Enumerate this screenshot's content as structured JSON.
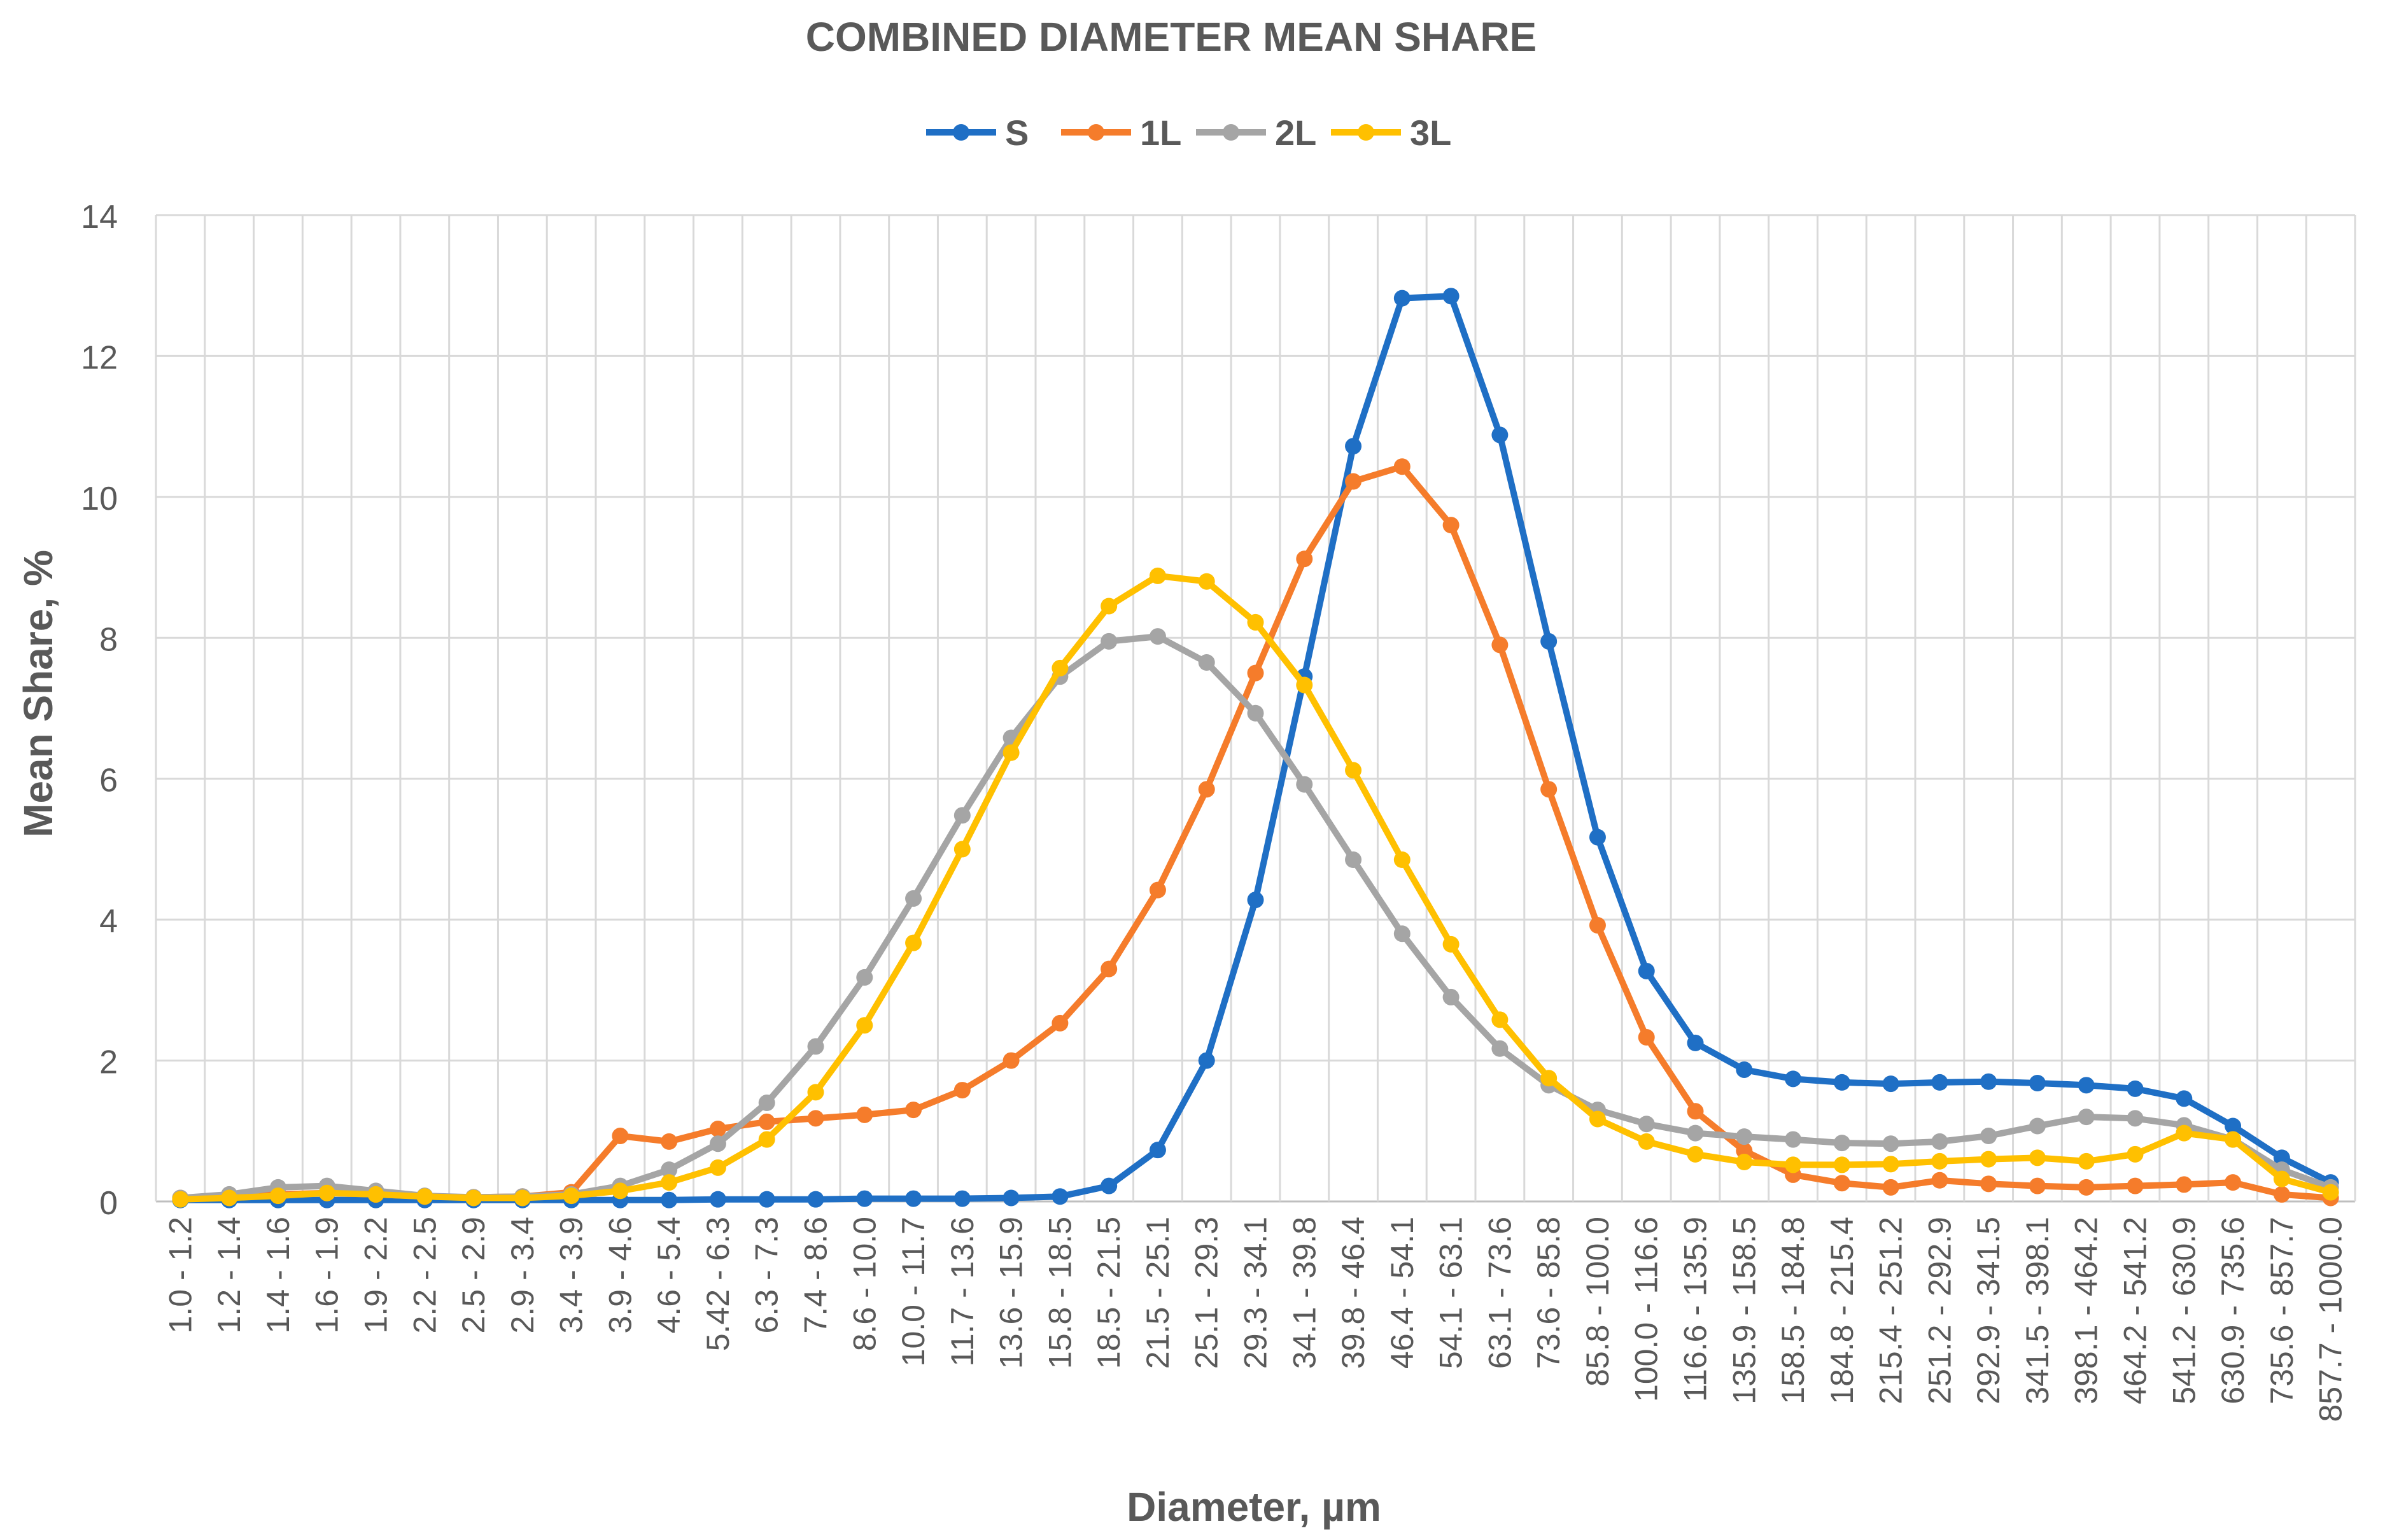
{
  "chart_data": {
    "type": "line",
    "title": "COMBINED DIAMETER MEAN SHARE",
    "xlabel": "Diameter, µm",
    "ylabel": "Mean Share, %",
    "ylim": [
      0,
      14
    ],
    "yticks": [
      "0",
      "2",
      "4",
      "6",
      "8",
      "10",
      "12",
      "14"
    ],
    "grid": true,
    "legend_position": "top-center",
    "categories": [
      "1.0 - 1.2",
      "1.2 - 1.4",
      "1.4 - 1.6",
      "1.6 - 1.9",
      "1.9 - 2.2",
      "2.2 - 2.5",
      "2.5 - 2.9",
      "2.9 - 3.4",
      "3.4 - 3.9",
      "3.9 - 4.6",
      "4.6 - 5.4",
      "5.42 - 6.3",
      "6.3 - 7.3",
      "7.4 - 8.6",
      "8.6 - 10.0",
      "10.0 - 11.7",
      "11.7 - 13.6",
      "13.6 - 15.9",
      "15.8 - 18.5",
      "18.5 - 21.5",
      "21.5 - 25.1",
      "25.1 - 29.3",
      "29.3 - 34.1",
      "34.1 - 39.8",
      "39.8 - 46.4",
      "46.4 - 54.1",
      "54.1 - 63.1",
      "63.1 - 73.6",
      "73.6 - 85.8",
      "85.8 - 100.0",
      "100.0 - 116.6",
      "116.6 - 135.9",
      "135.9 - 158.5",
      "158.5 - 184.8",
      "184.8 - 215.4",
      "215.4 - 251.2",
      "251.2 - 292.9",
      "292.9 - 341.5",
      "341.5 - 398.1",
      "398.1 - 464.2",
      "464.2 - 541.2",
      "541.2 - 630.9",
      "630.9 - 735.6",
      "735.6 - 857.7",
      "857.7 - 1000.0"
    ],
    "series": [
      {
        "name": "S",
        "color": "#1F6FC5",
        "values": [
          0.02,
          0.02,
          0.02,
          0.02,
          0.02,
          0.02,
          0.02,
          0.02,
          0.02,
          0.02,
          0.02,
          0.03,
          0.03,
          0.03,
          0.04,
          0.04,
          0.04,
          0.05,
          0.07,
          0.22,
          0.73,
          2.0,
          4.28,
          7.45,
          10.72,
          12.82,
          12.85,
          10.88,
          7.95,
          5.17,
          3.27,
          2.25,
          1.87,
          1.74,
          1.69,
          1.67,
          1.69,
          1.7,
          1.68,
          1.65,
          1.6,
          1.46,
          1.07,
          0.62,
          0.27
        ]
      },
      {
        "name": "1L",
        "color": "#F57C2B",
        "values": [
          0.05,
          0.07,
          0.1,
          0.12,
          0.1,
          0.07,
          0.06,
          0.07,
          0.13,
          0.93,
          0.85,
          1.03,
          1.13,
          1.18,
          1.23,
          1.3,
          1.58,
          2.0,
          2.53,
          3.3,
          4.42,
          5.85,
          7.5,
          9.12,
          10.22,
          10.43,
          9.6,
          7.9,
          5.85,
          3.92,
          2.33,
          1.28,
          0.72,
          0.38,
          0.26,
          0.2,
          0.3,
          0.25,
          0.22,
          0.2,
          0.22,
          0.24,
          0.27,
          0.1,
          0.05
        ]
      },
      {
        "name": "2L",
        "color": "#A5A5A5",
        "values": [
          0.05,
          0.1,
          0.2,
          0.22,
          0.15,
          0.08,
          0.06,
          0.07,
          0.1,
          0.22,
          0.45,
          0.82,
          1.4,
          2.2,
          3.18,
          4.3,
          5.48,
          6.58,
          7.45,
          7.95,
          8.02,
          7.65,
          6.93,
          5.92,
          4.85,
          3.8,
          2.9,
          2.17,
          1.65,
          1.3,
          1.1,
          0.97,
          0.92,
          0.88,
          0.83,
          0.82,
          0.85,
          0.93,
          1.07,
          1.2,
          1.18,
          1.08,
          0.88,
          0.45,
          0.2
        ]
      },
      {
        "name": "3L",
        "color": "#FFC000",
        "values": [
          0.03,
          0.05,
          0.08,
          0.12,
          0.1,
          0.07,
          0.05,
          0.05,
          0.08,
          0.15,
          0.27,
          0.48,
          0.88,
          1.55,
          2.5,
          3.67,
          5.0,
          6.37,
          7.57,
          8.45,
          8.88,
          8.8,
          8.22,
          7.33,
          6.12,
          4.85,
          3.65,
          2.58,
          1.75,
          1.17,
          0.85,
          0.67,
          0.56,
          0.52,
          0.52,
          0.53,
          0.57,
          0.6,
          0.62,
          0.57,
          0.67,
          0.97,
          0.88,
          0.32,
          0.13
        ]
      }
    ]
  }
}
